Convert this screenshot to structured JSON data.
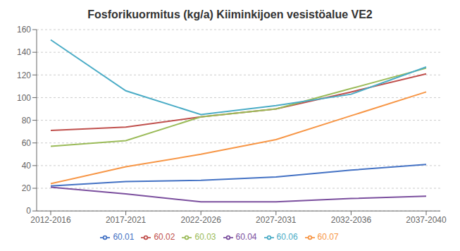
{
  "chart_data": {
    "type": "line",
    "title": "Fosforikuormitus (kg/a) Kiiminkijoen vesistöalue VE2",
    "categories": [
      "2012-2016",
      "2017-2021",
      "2022-2026",
      "2027-2031",
      "2032-2036",
      "2037-2040"
    ],
    "series": [
      {
        "name": "60.01",
        "color": "#4472C4",
        "values": [
          22,
          26,
          27,
          30,
          36,
          41
        ]
      },
      {
        "name": "60.02",
        "color": "#C0504D",
        "values": [
          71,
          74,
          83,
          90,
          105,
          121
        ]
      },
      {
        "name": "60.03",
        "color": "#9BBB59",
        "values": [
          57,
          62,
          83,
          90,
          108,
          126
        ]
      },
      {
        "name": "60.04",
        "color": "#7B4F9E",
        "values": [
          21,
          15,
          8,
          8,
          11,
          13
        ]
      },
      {
        "name": "60.06",
        "color": "#4BACC6",
        "values": [
          151,
          106,
          85,
          93,
          103,
          127
        ]
      },
      {
        "name": "60.07",
        "color": "#F79646",
        "values": [
          24,
          39,
          50,
          63,
          84,
          105
        ]
      }
    ],
    "ylim": [
      0,
      160
    ],
    "yticks": [
      0,
      20,
      40,
      60,
      80,
      100,
      120,
      140,
      160
    ],
    "grid": true,
    "legend": "bottom"
  }
}
